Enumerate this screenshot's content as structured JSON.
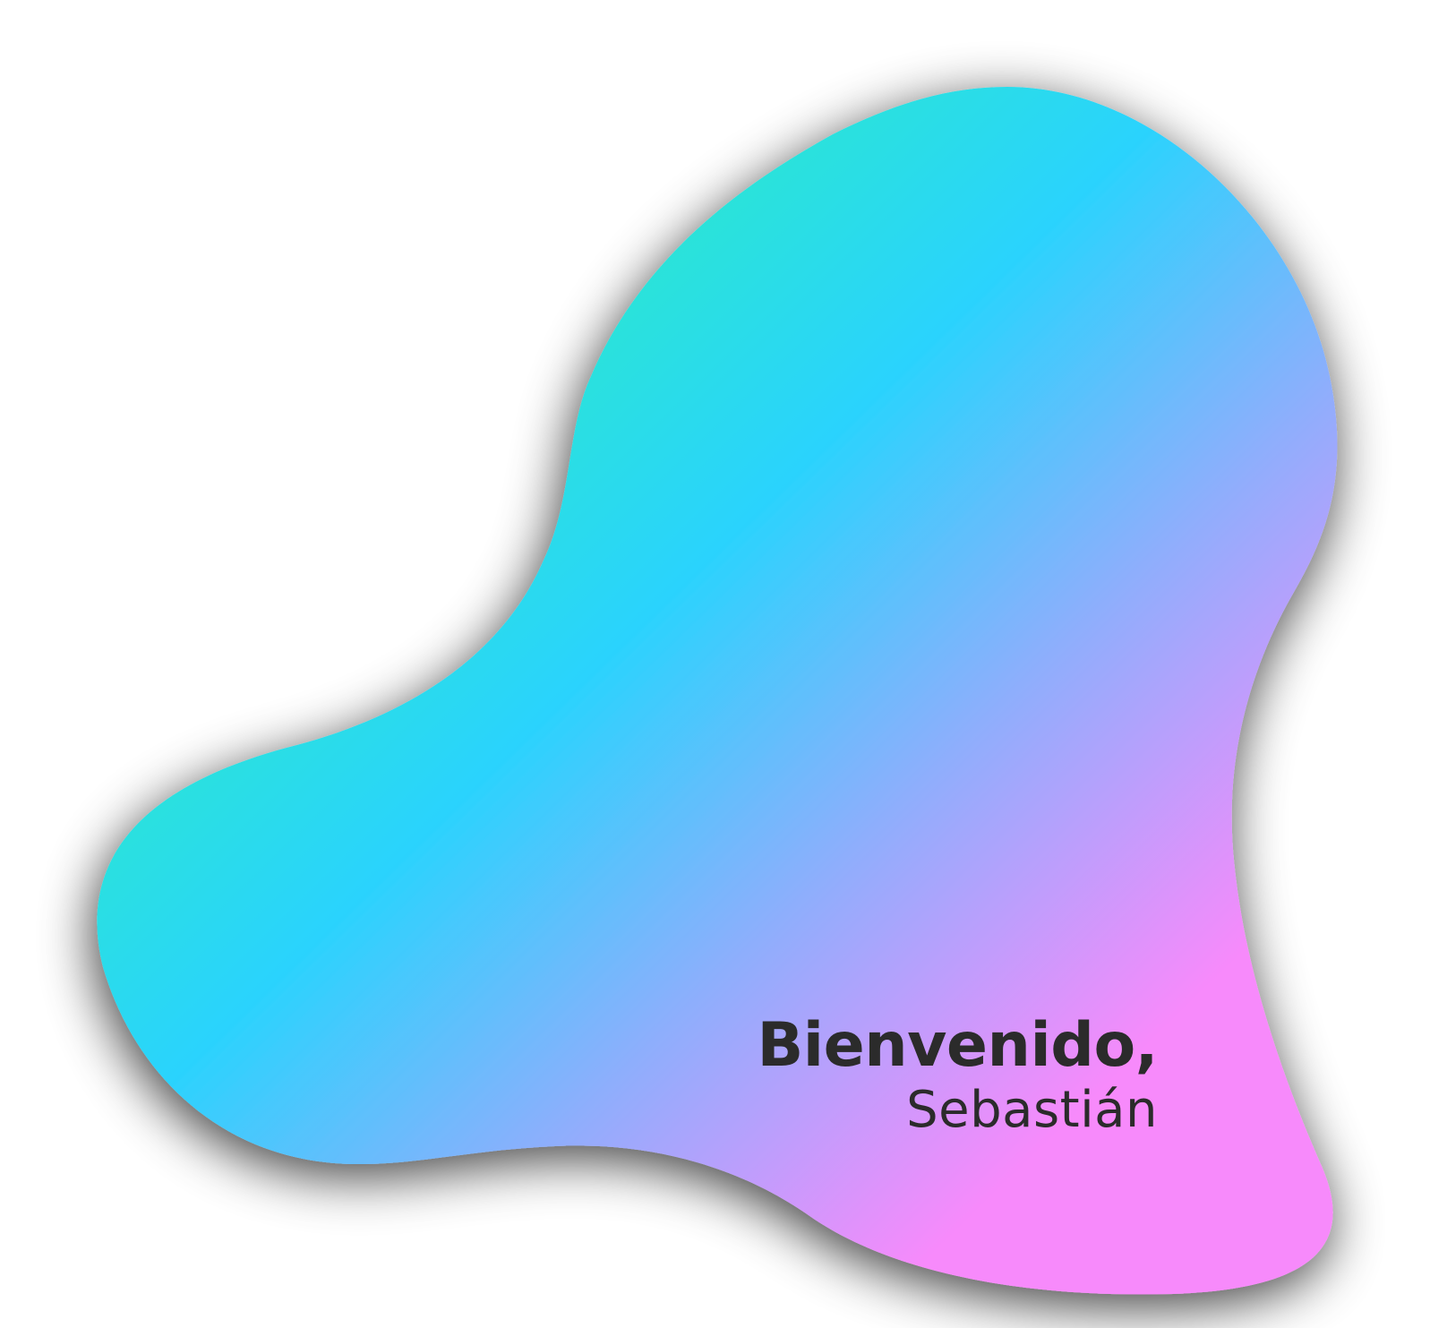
{
  "greeting": {
    "title": "Bienvenido,",
    "name": "Sebastián"
  },
  "colors": {
    "background": "#ffffff",
    "text": "#2b2b2b",
    "gradient_start": "#2ef0bc",
    "gradient_mid": "#2ad3fd",
    "gradient_end": "#f78afb",
    "shadow": "#000000"
  }
}
